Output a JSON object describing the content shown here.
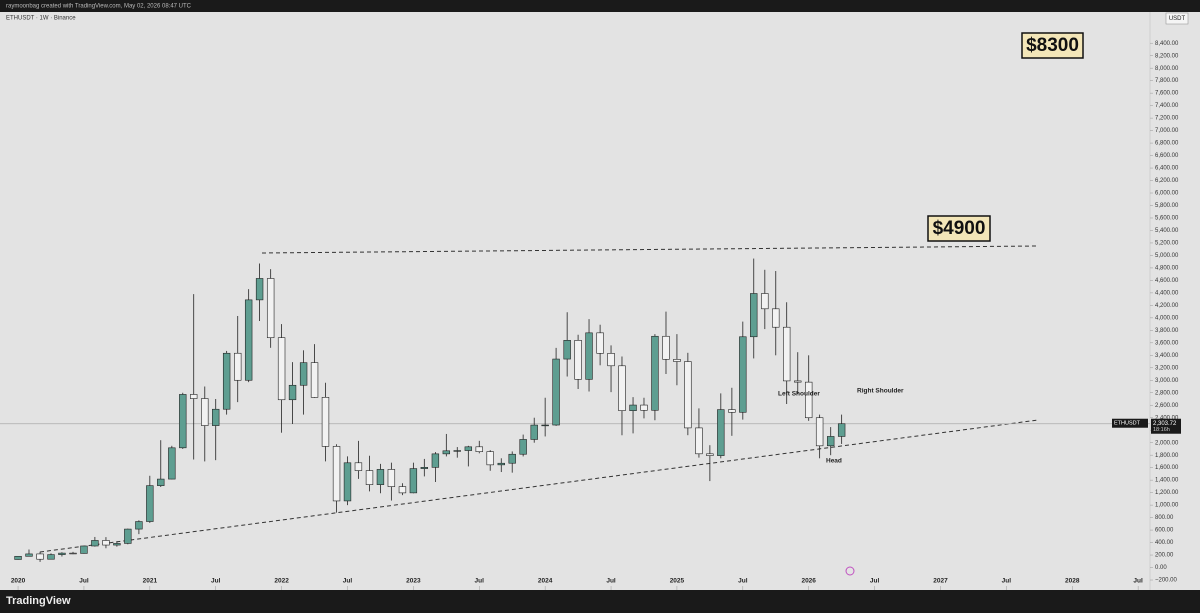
{
  "header": {
    "credit": "raymoonbag created with TradingView.com, May 02, 2026 08:47 UTC"
  },
  "footer": {
    "brand": "TradingView"
  },
  "chart_data": {
    "type": "candlestick",
    "title": "ETHUSDT · 1W · Binance",
    "currency": "USDT",
    "up_color": "#5e9e91",
    "down_color": "#f2f2f2",
    "x": [
      2020,
      2020.083,
      2020.167,
      2020.25,
      2020.333,
      2020.417,
      2020.5,
      2020.583,
      2020.667,
      2020.75,
      2020.833,
      2020.917,
      2021,
      2021.083,
      2021.167,
      2021.25,
      2021.333,
      2021.417,
      2021.5,
      2021.583,
      2021.667,
      2021.75,
      2021.833,
      2021.917,
      2022,
      2022.083,
      2022.167,
      2022.25,
      2022.333,
      2022.417,
      2022.5,
      2022.583,
      2022.667,
      2022.75,
      2022.833,
      2022.917,
      2023,
      2023.083,
      2023.167,
      2023.25,
      2023.333,
      2023.417,
      2023.5,
      2023.583,
      2023.667,
      2023.75,
      2023.833,
      2023.917,
      2024,
      2024.083,
      2024.167,
      2024.25,
      2024.333,
      2024.417,
      2024.5,
      2024.583,
      2024.667,
      2024.75,
      2024.833,
      2024.917,
      2025,
      2025.083,
      2025.167,
      2025.25,
      2025.333,
      2025.417,
      2025.5,
      2025.583,
      2025.667,
      2025.75,
      2025.833,
      2025.917,
      2026,
      2026.083,
      2026.167,
      2026.25
    ],
    "open": [
      129,
      180,
      218,
      133,
      207,
      231,
      226,
      345,
      434,
      360,
      386,
      616,
      737,
      1312,
      1417,
      1918,
      2773,
      2707,
      2274,
      2536,
      3433,
      3000,
      4288,
      4631,
      3682,
      2688,
      2920,
      3282,
      2727,
      1941,
      1067,
      1678,
      1553,
      1328,
      1572,
      1296,
      1196,
      1585,
      1605,
      1821,
      1870,
      1874,
      1934,
      1856,
      1645,
      1671,
      1815,
      2052,
      2282,
      2283,
      3340,
      3640,
      3015,
      3760,
      3432,
      3232,
      2513,
      2603,
      2519,
      3705,
      3336,
      3300,
      2237,
      1822,
      1793,
      2530,
      2487,
      3697,
      4390,
      4145,
      3850,
      2990,
      2970,
      2400,
      1950,
      2100
    ],
    "high": [
      180,
      288,
      253,
      227,
      245,
      250,
      346,
      490,
      488,
      420,
      623,
      757,
      1470,
      2040,
      1950,
      2800,
      4380,
      2900,
      2700,
      3470,
      4030,
      4460,
      4870,
      4780,
      3900,
      3290,
      3480,
      3580,
      2960,
      1975,
      1780,
      2030,
      1790,
      1660,
      1680,
      1350,
      1680,
      1740,
      1850,
      2140,
      1930,
      1950,
      2030,
      1880,
      1750,
      1860,
      2130,
      2400,
      2720,
      3520,
      4090,
      3730,
      3980,
      3890,
      3560,
      3380,
      2730,
      2720,
      3740,
      4100,
      3740,
      3440,
      2550,
      1960,
      2790,
      2880,
      3940,
      4950,
      4770,
      4750,
      4250,
      3450,
      3400,
      2450,
      2250,
      2450
    ],
    "low": [
      127,
      180,
      90,
      131,
      176,
      215,
      222,
      335,
      308,
      334,
      372,
      535,
      715,
      1290,
      1412,
      1900,
      1730,
      1700,
      1720,
      2450,
      2650,
      2970,
      3950,
      3520,
      2160,
      2300,
      2450,
      2720,
      1700,
      880,
      1000,
      1420,
      1220,
      1190,
      1073,
      1160,
      1190,
      1460,
      1370,
      1780,
      1760,
      1620,
      1830,
      1550,
      1530,
      1520,
      1780,
      2000,
      2100,
      2270,
      3060,
      2860,
      2820,
      3240,
      2810,
      2120,
      2150,
      2390,
      2360,
      3100,
      2920,
      2120,
      1760,
      1385,
      1750,
      2110,
      2370,
      3350,
      3820,
      3400,
      2620,
      2780,
      2350,
      1750,
      1800,
      1980
    ],
    "close": [
      180,
      218,
      133,
      207,
      231,
      226,
      345,
      434,
      360,
      386,
      616,
      737,
      1312,
      1417,
      1918,
      2773,
      2707,
      2274,
      2536,
      3433,
      3000,
      4288,
      4631,
      3682,
      2688,
      2920,
      3282,
      2727,
      1941,
      1067,
      1678,
      1553,
      1328,
      1572,
      1296,
      1196,
      1585,
      1605,
      1821,
      1870,
      1874,
      1934,
      1856,
      1645,
      1671,
      1815,
      2052,
      2282,
      2283,
      3340,
      3640,
      3015,
      3760,
      3432,
      3232,
      2513,
      2603,
      2519,
      3705,
      3336,
      3300,
      2237,
      1822,
      1793,
      2530,
      2487,
      3697,
      4390,
      4145,
      3850,
      2990,
      2970,
      2400,
      1950,
      2100,
      2303.72
    ],
    "last_price": {
      "symbol": "ETHUSDT",
      "value": 2303.72,
      "label": "2,303.72",
      "countdown": "18:16h"
    },
    "annotations": {
      "target_high": "$8300",
      "target_mid": "$4900",
      "left_shoulder": "Left Shoulder",
      "right_shoulder": "Right Shoulder",
      "head": "Head"
    },
    "xlim": [
      2019.863,
      2028.59
    ],
    "xticks": [
      2020,
      {
        "value": 2020.5,
        "label": "Jul"
      },
      2021,
      {
        "value": 2021.5,
        "label": "Jul"
      },
      2022,
      {
        "value": 2022.5,
        "label": "Jul"
      },
      2023,
      {
        "value": 2023.5,
        "label": "Jul"
      },
      2024,
      {
        "value": 2024.5,
        "label": "Jul"
      },
      2025,
      {
        "value": 2025.5,
        "label": "Jul"
      },
      2026,
      {
        "value": 2026.5,
        "label": "Jul"
      },
      2027,
      {
        "value": 2027.5,
        "label": "Jul"
      },
      2028,
      {
        "value": 2028.5,
        "label": "Jul"
      }
    ],
    "ylim": [
      -360,
      8900
    ],
    "yticks": [
      {
        "value": -200,
        "label": "−200.00"
      },
      {
        "value": 0,
        "label": "0.00"
      },
      {
        "value": 200,
        "label": "200.00"
      },
      {
        "value": 400,
        "label": "400.00"
      },
      {
        "value": 600,
        "label": "600.00"
      },
      {
        "value": 800,
        "label": "800.00"
      },
      {
        "value": 1000,
        "label": "1,000.00"
      },
      {
        "value": 1200,
        "label": "1,200.00"
      },
      {
        "value": 1400,
        "label": "1,400.00"
      },
      {
        "value": 1600,
        "label": "1,600.00"
      },
      {
        "value": 1800,
        "label": "1,800.00"
      },
      {
        "value": 2000,
        "label": "2,000.00"
      },
      {
        "value": 2200,
        "label": "2,200.00"
      },
      {
        "value": 2400,
        "label": "2,400.00"
      },
      {
        "value": 2600,
        "label": "2,600.00"
      },
      {
        "value": 2800,
        "label": "2,800.00"
      },
      {
        "value": 3000,
        "label": "3,000.00"
      },
      {
        "value": 3200,
        "label": "3,200.00"
      },
      {
        "value": 3400,
        "label": "3,400.00"
      },
      {
        "value": 3600,
        "label": "3,600.00"
      },
      {
        "value": 3800,
        "label": "3,800.00"
      },
      {
        "value": 4000,
        "label": "4,000.00"
      },
      {
        "value": 4200,
        "label": "4,200.00"
      },
      {
        "value": 4400,
        "label": "4,400.00"
      },
      {
        "value": 4600,
        "label": "4,600.00"
      },
      {
        "value": 4800,
        "label": "4,800.00"
      },
      {
        "value": 5000,
        "label": "5,000.00"
      },
      {
        "value": 5200,
        "label": "5,200.00"
      },
      {
        "value": 5400,
        "label": "5,400.00"
      },
      {
        "value": 5600,
        "label": "5,600.00"
      },
      {
        "value": 5800,
        "label": "5,800.00"
      },
      {
        "value": 6000,
        "label": "6,000.00"
      },
      {
        "value": 6200,
        "label": "6,200.00"
      },
      {
        "value": 6400,
        "label": "6,400.00"
      },
      {
        "value": 6600,
        "label": "6,600.00"
      },
      {
        "value": 6800,
        "label": "6,800.00"
      },
      {
        "value": 7000,
        "label": "7,000.00"
      },
      {
        "value": 7200,
        "label": "7,200.00"
      },
      {
        "value": 7400,
        "label": "7,400.00"
      },
      {
        "value": 7600,
        "label": "7,600.00"
      },
      {
        "value": 7800,
        "label": "7,800.00"
      },
      {
        "value": 8000,
        "label": "8,000.00"
      },
      {
        "value": 8200,
        "label": "8,200.00"
      },
      {
        "value": 8400,
        "label": "8,400.00"
      }
    ],
    "grid": false
  }
}
